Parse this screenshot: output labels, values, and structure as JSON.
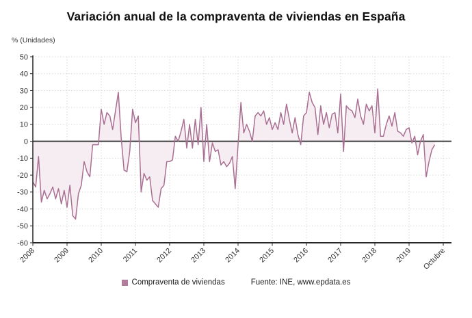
{
  "chart_data": {
    "type": "area",
    "title": "Variación anual de la compraventa de viviendas en España",
    "unit_label": "% (Unidades)",
    "source": "Fuente: INE, www.epdata.es",
    "ylim": [
      -60,
      50
    ],
    "baseline": 0,
    "grid": true,
    "legend_position": "bottom-center",
    "y_ticks": [
      50,
      40,
      30,
      20,
      10,
      0,
      -10,
      -20,
      -30,
      -40,
      -50,
      -60
    ],
    "x_tick_labels": [
      "2008",
      "2009",
      "2010",
      "2011",
      "2012",
      "2013",
      "2014",
      "2015",
      "2016",
      "2017",
      "2018",
      "2019",
      "Octubre"
    ],
    "colors": {
      "line": "#a96f93",
      "area_fill": "#f6edf2",
      "legend_swatch": "#b27b9c",
      "zero_line": "#404040",
      "axis": "#262626",
      "grid": "#d9d9d9",
      "tick_text": "#333333",
      "title_text": "#111111"
    },
    "series": [
      {
        "name": "Compraventa de viviendas",
        "frequency": "monthly",
        "first_month": "Enero 2008",
        "last_month": "Octubre 2019",
        "values_by_year": {
          "2008": [
            -24,
            -27,
            -9,
            -36,
            -29,
            -34,
            -31,
            -27,
            -34,
            -28,
            -37,
            -29
          ],
          "2009": [
            -39,
            -26,
            -44,
            -46,
            -31,
            -26,
            -12,
            -18,
            -21,
            -2,
            -2,
            -2
          ],
          "2010": [
            19,
            10,
            17,
            15,
            7,
            18,
            29,
            2,
            -17,
            -18,
            -6,
            19
          ],
          "2011": [
            11,
            15,
            -30,
            -19,
            -23,
            -21,
            -35,
            -37,
            -39,
            -28,
            -26,
            -12
          ],
          "2012": [
            -12,
            -11,
            3,
            0,
            6,
            13,
            -4,
            10,
            -4,
            13,
            -2,
            20
          ],
          "2013": [
            -12,
            10,
            -12,
            -1,
            -6,
            -5,
            -14,
            -12,
            -15,
            -13,
            -9,
            -28
          ],
          "2014": [
            -2,
            23,
            5,
            10,
            6,
            0,
            15,
            17,
            15,
            18,
            10,
            14
          ],
          "2015": [
            7,
            11,
            7,
            17,
            10,
            22,
            13,
            5,
            14,
            4,
            -2,
            15
          ],
          "2016": [
            17,
            29,
            23,
            20,
            4,
            21,
            10,
            17,
            8,
            16,
            17,
            5
          ],
          "2017": [
            28,
            -6,
            21,
            19,
            18,
            14,
            25,
            15,
            10,
            22,
            18,
            21
          ],
          "2018": [
            5,
            31,
            3,
            3,
            10,
            15,
            9,
            17,
            6,
            5,
            3,
            7
          ],
          "2019": [
            8,
            -1,
            3,
            -8,
            0,
            4,
            -21,
            -12,
            -5,
            -2
          ]
        }
      }
    ]
  }
}
